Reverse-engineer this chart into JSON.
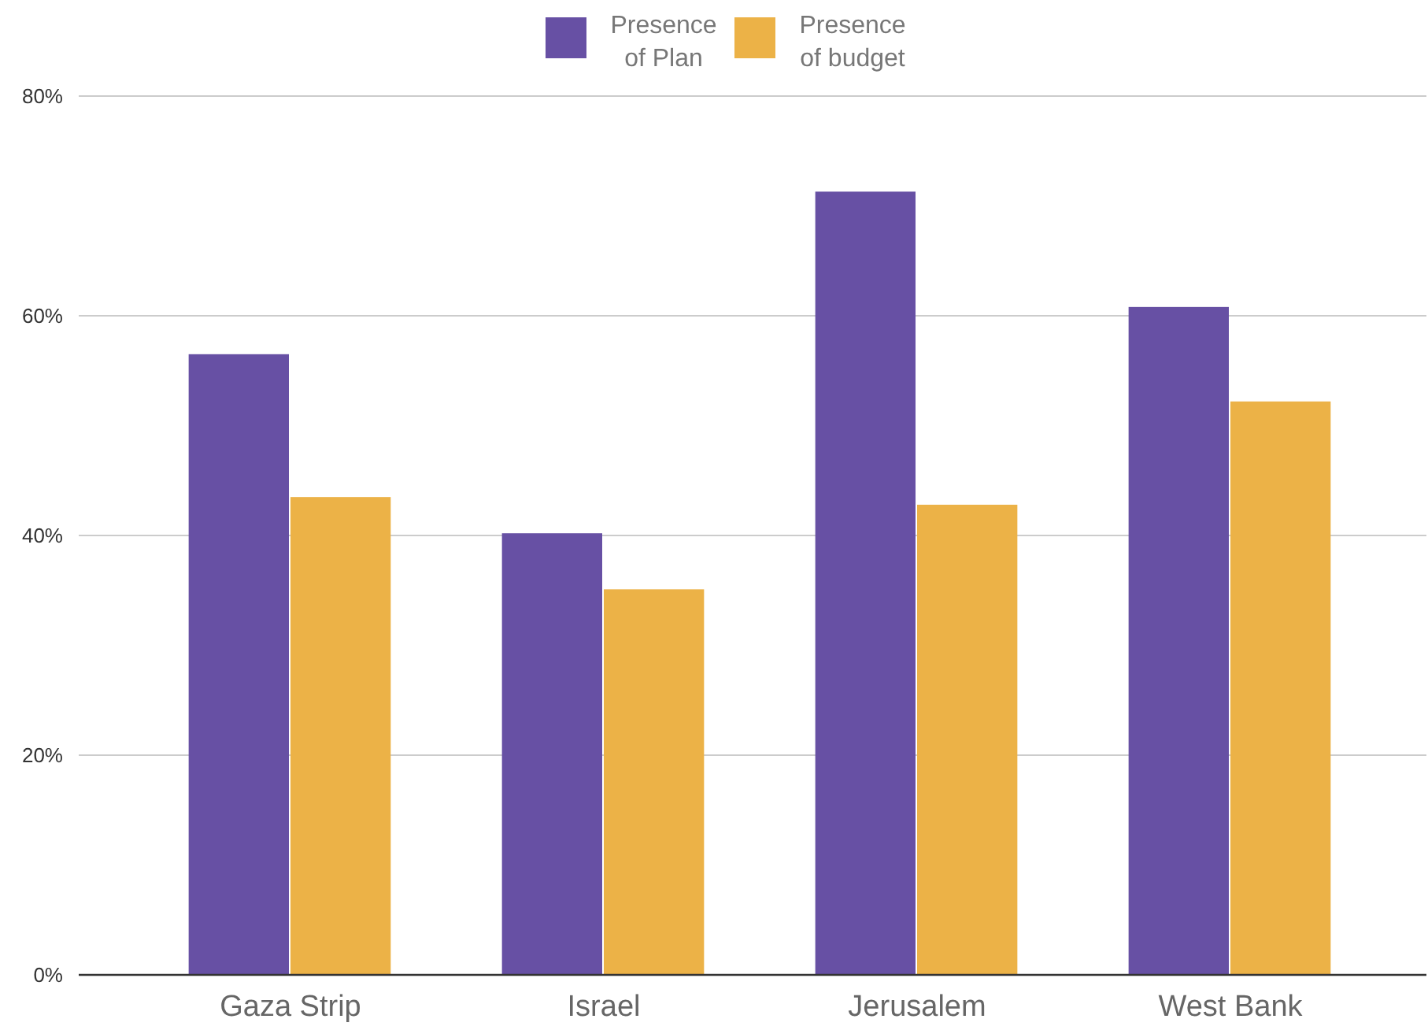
{
  "chart_data": {
    "type": "bar",
    "categories": [
      "Gaza Strip",
      "Israel",
      "Jerusalem",
      "West Bank"
    ],
    "series": [
      {
        "name": "Presence of Plan",
        "color": "#6750a4",
        "values": [
          56.5,
          40.2,
          71.3,
          60.8
        ]
      },
      {
        "name": "Presence of budget",
        "color": "#ecb247",
        "values": [
          43.5,
          35.1,
          42.8,
          52.2
        ]
      }
    ],
    "ylim": [
      0,
      80
    ],
    "yticks": [
      {
        "value": 0,
        "label": "0%"
      },
      {
        "value": 20,
        "label": "20%"
      },
      {
        "value": 40,
        "label": "40%"
      },
      {
        "value": 60,
        "label": "60%"
      },
      {
        "value": 80,
        "label": "80%"
      }
    ],
    "grid": "y",
    "legend": "top"
  }
}
